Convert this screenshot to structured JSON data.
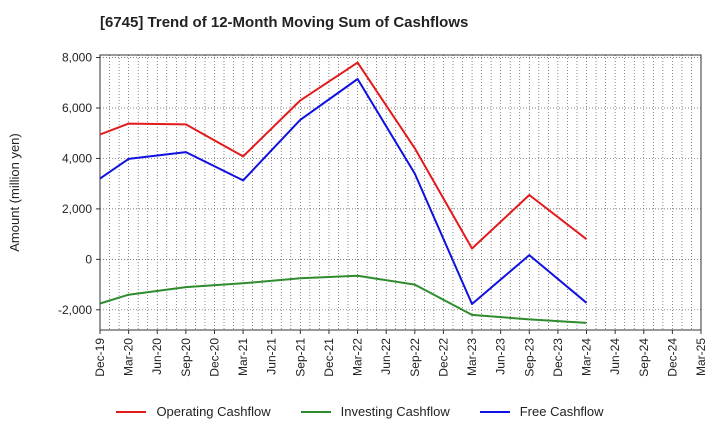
{
  "chart_data": {
    "type": "line",
    "title": "[6745]  Trend of 12-Month Moving Sum of Cashflows",
    "ylabel": "Amount (million yen)",
    "xlabel": "",
    "categories": [
      "Dec-19",
      "Mar-20",
      "Jun-20",
      "Sep-20",
      "Dec-20",
      "Mar-21",
      "Jun-21",
      "Sep-21",
      "Dec-21",
      "Mar-22",
      "Jun-22",
      "Sep-22",
      "Dec-22",
      "Mar-23",
      "Jun-23",
      "Sep-23",
      "Dec-23",
      "Mar-24",
      "Jun-24",
      "Sep-24",
      "Dec-24",
      "Mar-25"
    ],
    "y_ticks": [
      -2000,
      0,
      2000,
      4000,
      6000,
      8000
    ],
    "y_tick_labels": [
      "-2,000",
      "0",
      "2,000",
      "4,000",
      "6,000",
      "8,000"
    ],
    "ylim": [
      -2800,
      8100
    ],
    "grid": true,
    "legend_position": "bottom",
    "series": [
      {
        "name": "Operating Cashflow",
        "color": "#e31a1c",
        "points": [
          {
            "x": "Dec-19",
            "y": 4950
          },
          {
            "x": "Mar-20",
            "y": 5380
          },
          {
            "x": "Sep-20",
            "y": 5350
          },
          {
            "x": "Mar-21",
            "y": 4080
          },
          {
            "x": "Sep-21",
            "y": 6300
          },
          {
            "x": "Mar-22",
            "y": 7800
          },
          {
            "x": "Sep-22",
            "y": 4400
          },
          {
            "x": "Mar-23",
            "y": 430
          },
          {
            "x": "Sep-23",
            "y": 2550
          },
          {
            "x": "Mar-24",
            "y": 800
          }
        ]
      },
      {
        "name": "Investing Cashflow",
        "color": "#2e8b2e",
        "points": [
          {
            "x": "Dec-19",
            "y": -1750
          },
          {
            "x": "Mar-20",
            "y": -1400
          },
          {
            "x": "Sep-20",
            "y": -1100
          },
          {
            "x": "Mar-21",
            "y": -950
          },
          {
            "x": "Sep-21",
            "y": -750
          },
          {
            "x": "Mar-22",
            "y": -650
          },
          {
            "x": "Sep-22",
            "y": -1000
          },
          {
            "x": "Mar-23",
            "y": -2200
          },
          {
            "x": "Sep-23",
            "y": -2380
          },
          {
            "x": "Mar-24",
            "y": -2520
          }
        ]
      },
      {
        "name": "Free Cashflow",
        "color": "#1010e0",
        "points": [
          {
            "x": "Dec-19",
            "y": 3200
          },
          {
            "x": "Mar-20",
            "y": 3980
          },
          {
            "x": "Sep-20",
            "y": 4250
          },
          {
            "x": "Mar-21",
            "y": 3130
          },
          {
            "x": "Sep-21",
            "y": 5530
          },
          {
            "x": "Mar-22",
            "y": 7150
          },
          {
            "x": "Sep-22",
            "y": 3400
          },
          {
            "x": "Mar-23",
            "y": -1770
          },
          {
            "x": "Sep-23",
            "y": 170
          },
          {
            "x": "Mar-24",
            "y": -1720
          }
        ]
      }
    ]
  }
}
